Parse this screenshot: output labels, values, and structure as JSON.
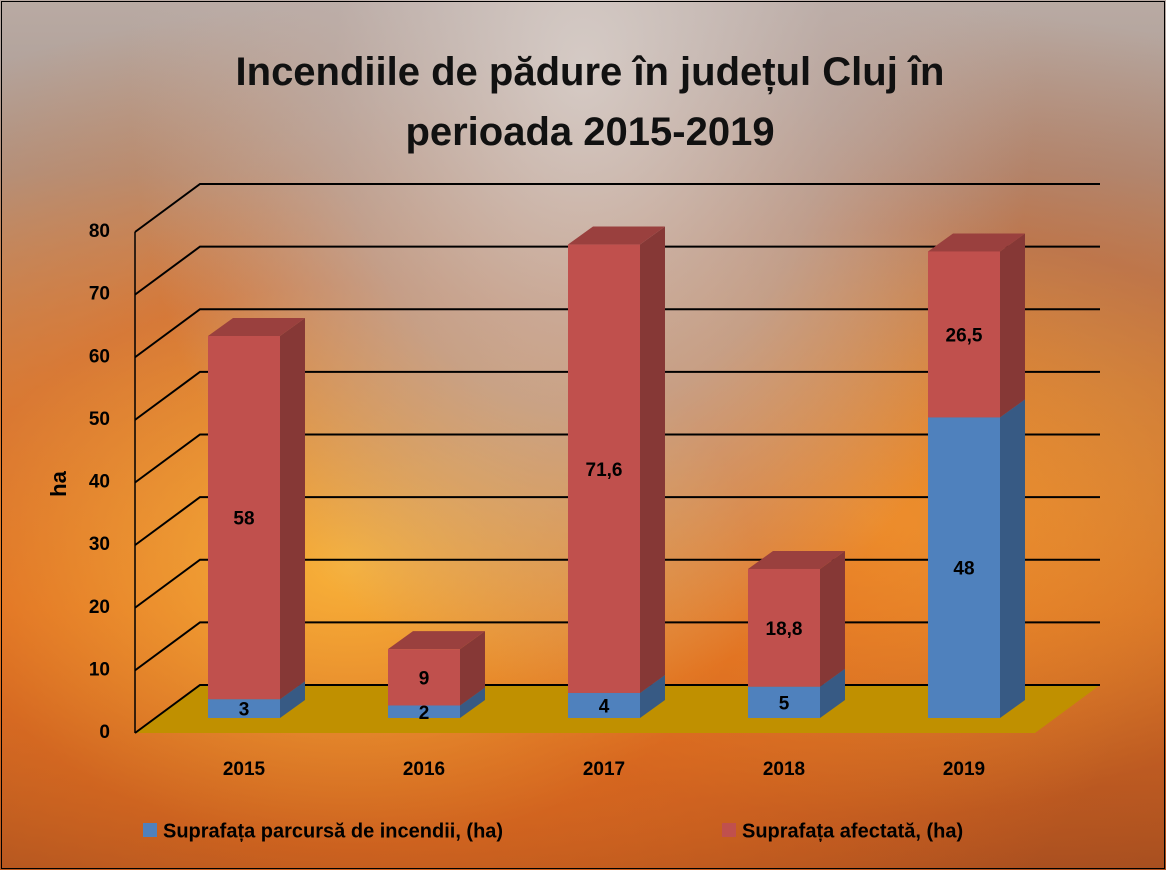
{
  "chart_data": {
    "type": "bar3d_stacked",
    "title": "Incendiile de pădure în județul Cluj în perioada 2015-2019",
    "y_label": "ha",
    "categories": [
      "2015",
      "2016",
      "2017",
      "2018",
      "2019"
    ],
    "series": [
      {
        "name": "Suprafața parcursă de incendii, (ha)",
        "color": "#4f81bd",
        "values": [
          3,
          2,
          4,
          5,
          48
        ]
      },
      {
        "name": "Suprafața afectată, (ha)",
        "color": "#c0504d",
        "values": [
          58,
          9,
          71.6,
          18.8,
          26.5
        ],
        "value_labels": [
          "58",
          "9",
          "71,6",
          "18,8",
          "26,5"
        ]
      }
    ],
    "ylim": [
      0,
      80
    ],
    "yticks": [
      0,
      10,
      20,
      30,
      40,
      50,
      60,
      70,
      80
    ],
    "grid": true,
    "legend": "bottom"
  }
}
